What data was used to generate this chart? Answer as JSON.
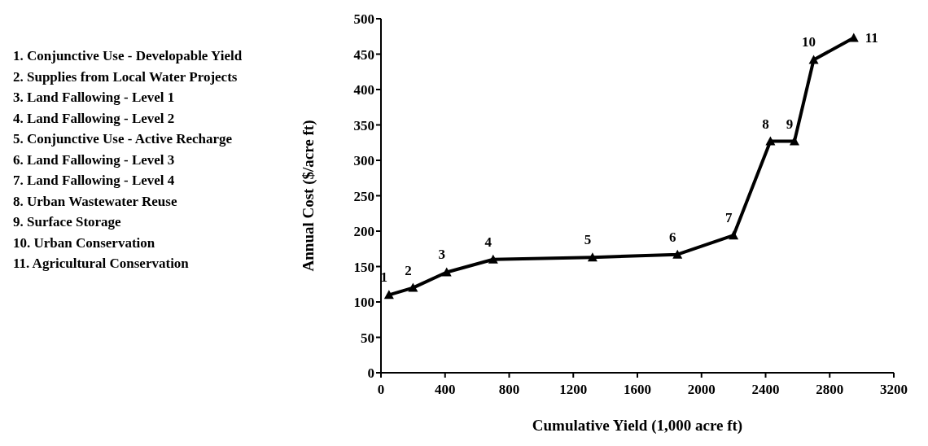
{
  "chart_data": {
    "type": "line",
    "xlabel": "Cumulative Yield (1,000 acre ft)",
    "ylabel": "Annual Cost ($/acre ft)",
    "x": [
      50,
      200,
      410,
      700,
      1320,
      1850,
      2200,
      2430,
      2580,
      2700,
      2950
    ],
    "series": [
      {
        "color": "#000000",
        "values": [
          110,
          120,
          142,
          160,
          163,
          167,
          194,
          327,
          327,
          442,
          473
        ]
      }
    ],
    "xlim": [
      0,
      3200
    ],
    "xticks": [
      0,
      400,
      800,
      1200,
      1600,
      2000,
      2400,
      2800,
      3200
    ],
    "ylim": [
      0,
      500
    ],
    "yticks": [
      0,
      50,
      100,
      150,
      200,
      250,
      300,
      350,
      400,
      450,
      500
    ],
    "grid": false,
    "marker": "triangle",
    "line_style": "solid",
    "annotations": [
      {
        "text": "1",
        "x": 50,
        "y": 110
      },
      {
        "text": "2",
        "x": 200,
        "y": 120
      },
      {
        "text": "3",
        "x": 410,
        "y": 142
      },
      {
        "text": "4",
        "x": 700,
        "y": 160
      },
      {
        "text": "5",
        "x": 1320,
        "y": 163
      },
      {
        "text": "6",
        "x": 1850,
        "y": 167
      },
      {
        "text": "7",
        "x": 2200,
        "y": 194
      },
      {
        "text": "8",
        "x": 2430,
        "y": 327
      },
      {
        "text": "9",
        "x": 2580,
        "y": 327
      },
      {
        "text": "10",
        "x": 2700,
        "y": 442
      },
      {
        "text": "11",
        "x": 2950,
        "y": 473
      },
      "1. Conjunctive Use - Developable Yield",
      "2. Supplies from Local Water Projects",
      "3. Land Fallowing - Level 1",
      "4. Land Fallowing - Level 2",
      "5. Conjunctive Use - Active Recharge",
      "6. Land Fallowing - Level 3",
      "7. Land Fallowing - Level 4",
      "8. Urban Wastewater Reuse",
      "9. Surface Storage",
      "10. Urban Conservation",
      "11. Agricultural Conservation"
    ]
  }
}
